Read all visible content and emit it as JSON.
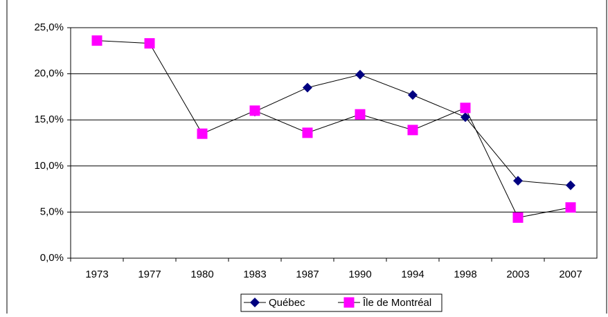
{
  "chart_data": {
    "type": "line",
    "categories": [
      "1973",
      "1977",
      "1980",
      "1983",
      "1987",
      "1990",
      "1994",
      "1998",
      "2003",
      "2007"
    ],
    "series": [
      {
        "name": "Québec",
        "color": "#000080",
        "marker": "diamond",
        "values": [
          null,
          null,
          null,
          15.9,
          18.5,
          19.9,
          17.7,
          15.3,
          8.4,
          7.9
        ]
      },
      {
        "name": "Île de Montréal",
        "color": "#ff00ff",
        "marker": "square",
        "values": [
          23.6,
          23.3,
          13.5,
          16.0,
          13.6,
          15.6,
          13.9,
          16.3,
          4.4,
          5.5
        ]
      }
    ],
    "ylim": [
      0,
      25
    ],
    "yticks": [
      {
        "value": 0,
        "label": "0,0%"
      },
      {
        "value": 5,
        "label": "5,0%"
      },
      {
        "value": 10,
        "label": "10,0%"
      },
      {
        "value": 15,
        "label": "15,0%"
      },
      {
        "value": 20,
        "label": "20,0%"
      },
      {
        "value": 25,
        "label": "25,0%"
      }
    ],
    "grid": true
  }
}
